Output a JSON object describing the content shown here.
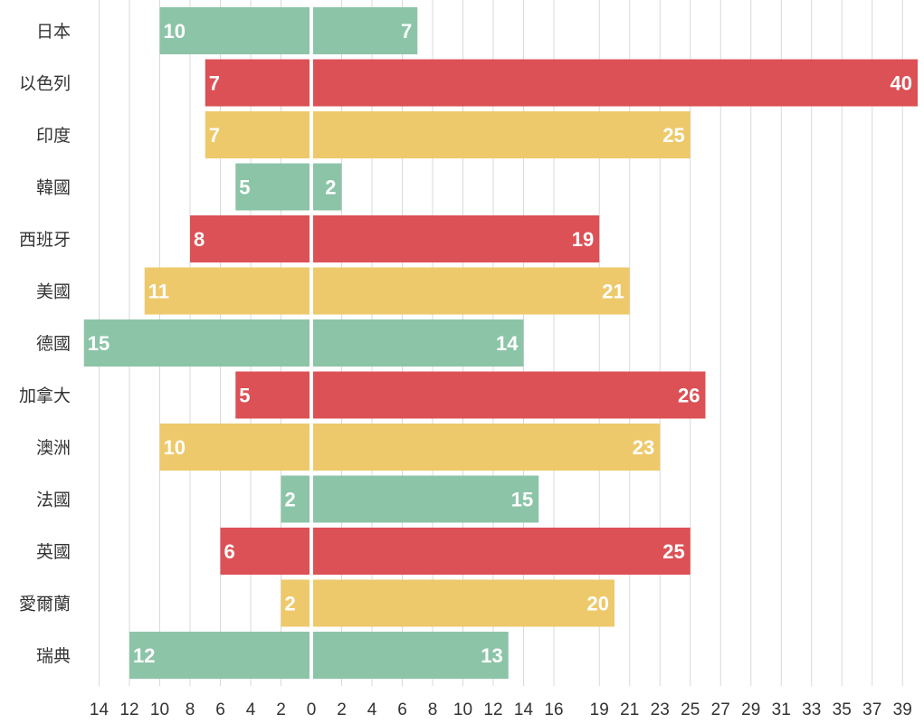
{
  "chart_data": {
    "type": "bar",
    "orientation": "horizontal-diverging",
    "categories": [
      "日本",
      "以色列",
      "印度",
      "韓國",
      "西班牙",
      "美國",
      "德國",
      "加拿大",
      "澳洲",
      "法國",
      "英國",
      "愛爾蘭",
      "瑞典"
    ],
    "series": [
      {
        "name": "left",
        "values": [
          10,
          7,
          7,
          5,
          8,
          11,
          15,
          5,
          10,
          2,
          6,
          2,
          12
        ]
      },
      {
        "name": "right",
        "values": [
          7,
          40,
          25,
          2,
          19,
          21,
          14,
          26,
          23,
          15,
          25,
          20,
          13
        ]
      }
    ],
    "bar_colors": [
      "#8cc4a8",
      "#dc5155",
      "#eec96b",
      "#8cc4a8",
      "#dc5155",
      "#eec96b",
      "#8cc4a8",
      "#dc5155",
      "#eec96b",
      "#8cc4a8",
      "#dc5155",
      "#eec96b",
      "#8cc4a8"
    ],
    "left_ticks": [
      "14",
      "12",
      "10",
      "8",
      "6",
      "4",
      "2",
      "0"
    ],
    "right_ticks": [
      "2",
      "4",
      "6",
      "8",
      "10",
      "12",
      "14",
      "16",
      "19",
      "21",
      "23",
      "25",
      "27",
      "29",
      "31",
      "33",
      "35",
      "37",
      "39"
    ],
    "highlight_tick": "21",
    "xlim_left": [
      15,
      0
    ],
    "xlim_right": [
      0,
      40
    ],
    "title": "",
    "xlabel": "",
    "ylabel": "",
    "grid": true,
    "grid_color": "#d9d9d9",
    "text_color": "#333333",
    "highlight_color": "#000000"
  }
}
